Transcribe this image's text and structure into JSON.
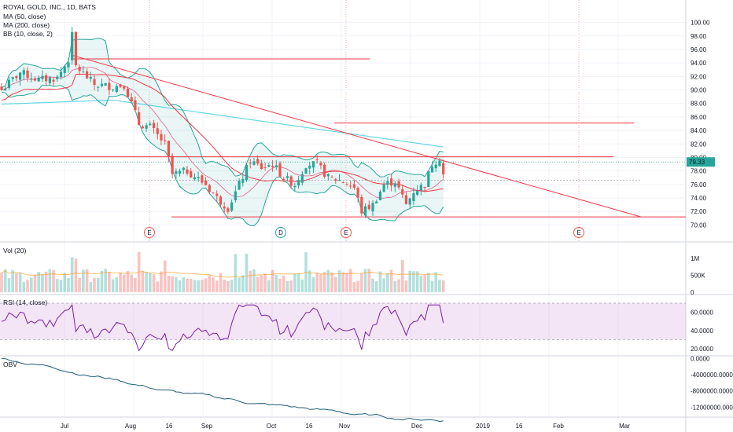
{
  "chart_data": [
    {
      "type": "candlestick",
      "title": "ROYAL GOLD, INC., 1D, BATS",
      "legend": [
        "MA (50, close)",
        "MA (200, close)",
        "BB (10, close, 2)"
      ],
      "ylim": [
        69,
        101
      ],
      "y_ticks": [
        "70.00",
        "72.00",
        "74.00",
        "76.00",
        "78.00",
        "80.00",
        "82.00",
        "84.00",
        "86.00",
        "88.00",
        "90.00",
        "92.00",
        "94.00",
        "96.00",
        "98.00",
        "100.00"
      ],
      "last_price": "79.33",
      "x_ticks": [
        "Jul",
        "Aug",
        "16",
        "Sep",
        "Oct",
        "16",
        "Nov",
        "Dec",
        "2019",
        "16",
        "Feb",
        "Mar"
      ],
      "events": [
        "E",
        "D",
        "E",
        "E"
      ],
      "colors": {
        "up": "#26a69a",
        "down": "#ef5350",
        "ma50": "#e91e63",
        "ma200": "#00bcd4",
        "bb": "#26a69a",
        "trend": "#f23645"
      }
    },
    {
      "type": "bar",
      "title": "Vol (20)",
      "ylim": [
        0,
        1400000
      ],
      "y_ticks": [
        "0",
        "500K",
        "1M"
      ]
    },
    {
      "type": "line",
      "title": "RSI (14, close)",
      "ylim": [
        14,
        76
      ],
      "y_ticks": [
        "20.0000",
        "40.0000",
        "60.0000"
      ],
      "bands": [
        30,
        70
      ]
    },
    {
      "type": "line",
      "title": "OBV",
      "ylim": [
        -13500000,
        500000
      ],
      "y_ticks": [
        "0.0000",
        "-4000000.0000",
        "-8000000.0000",
        "-12000000.0000"
      ]
    }
  ]
}
